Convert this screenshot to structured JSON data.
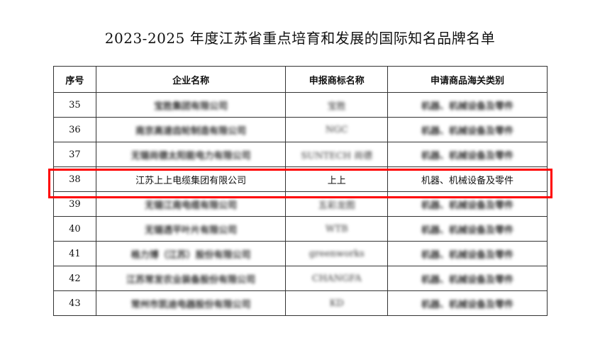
{
  "title": "2023-2025 年度江苏省重点培育和发展的国际知名品牌名单",
  "table": {
    "headers": [
      "序号",
      "企业名称",
      "申报商标名称",
      "申请商品海关类别"
    ],
    "rows": [
      {
        "no": "35",
        "company": "宝胜集团有限公司",
        "brand": "宝胜",
        "category": "机器、机械设备及零件",
        "blurred": true
      },
      {
        "no": "36",
        "company": "南京高速齿轮制造有限公司",
        "brand": "NGC",
        "category": "机器、机械设备及零件",
        "blurred": true
      },
      {
        "no": "37",
        "company": "无锡尚德太阳能电力有限公司",
        "brand": "SUNTECH 尚德",
        "category": "机器、机械设备及零件",
        "blurred": true
      },
      {
        "no": "38",
        "company": "江苏上上电缆集团有限公司",
        "brand": "上上",
        "category": "机器、机械设备及零件",
        "blurred": false,
        "highlighted": true
      },
      {
        "no": "39",
        "company": "无锡江南电缆有限公司",
        "brand": "五彩龙图",
        "category": "机器、机械设备及零件",
        "blurred": true
      },
      {
        "no": "40",
        "company": "无锡透平叶片有限公司",
        "brand": "WTB",
        "category": "机器、机械设备及零件",
        "blurred": true
      },
      {
        "no": "41",
        "company": "格力博（江苏）股份有限公司",
        "brand": "greenworks",
        "category": "机器、机械设备及零件",
        "blurred": true
      },
      {
        "no": "42",
        "company": "江苏常发农业装备股份有限公司",
        "brand": "CHANGFA",
        "category": "机器、机械设备及零件",
        "blurred": true
      },
      {
        "no": "43",
        "company": "常州市凯迪电器股份有限公司",
        "brand": "KD",
        "category": "机器、机械设备及零件",
        "blurred": true
      }
    ]
  },
  "highlight_color": "#ff0000"
}
